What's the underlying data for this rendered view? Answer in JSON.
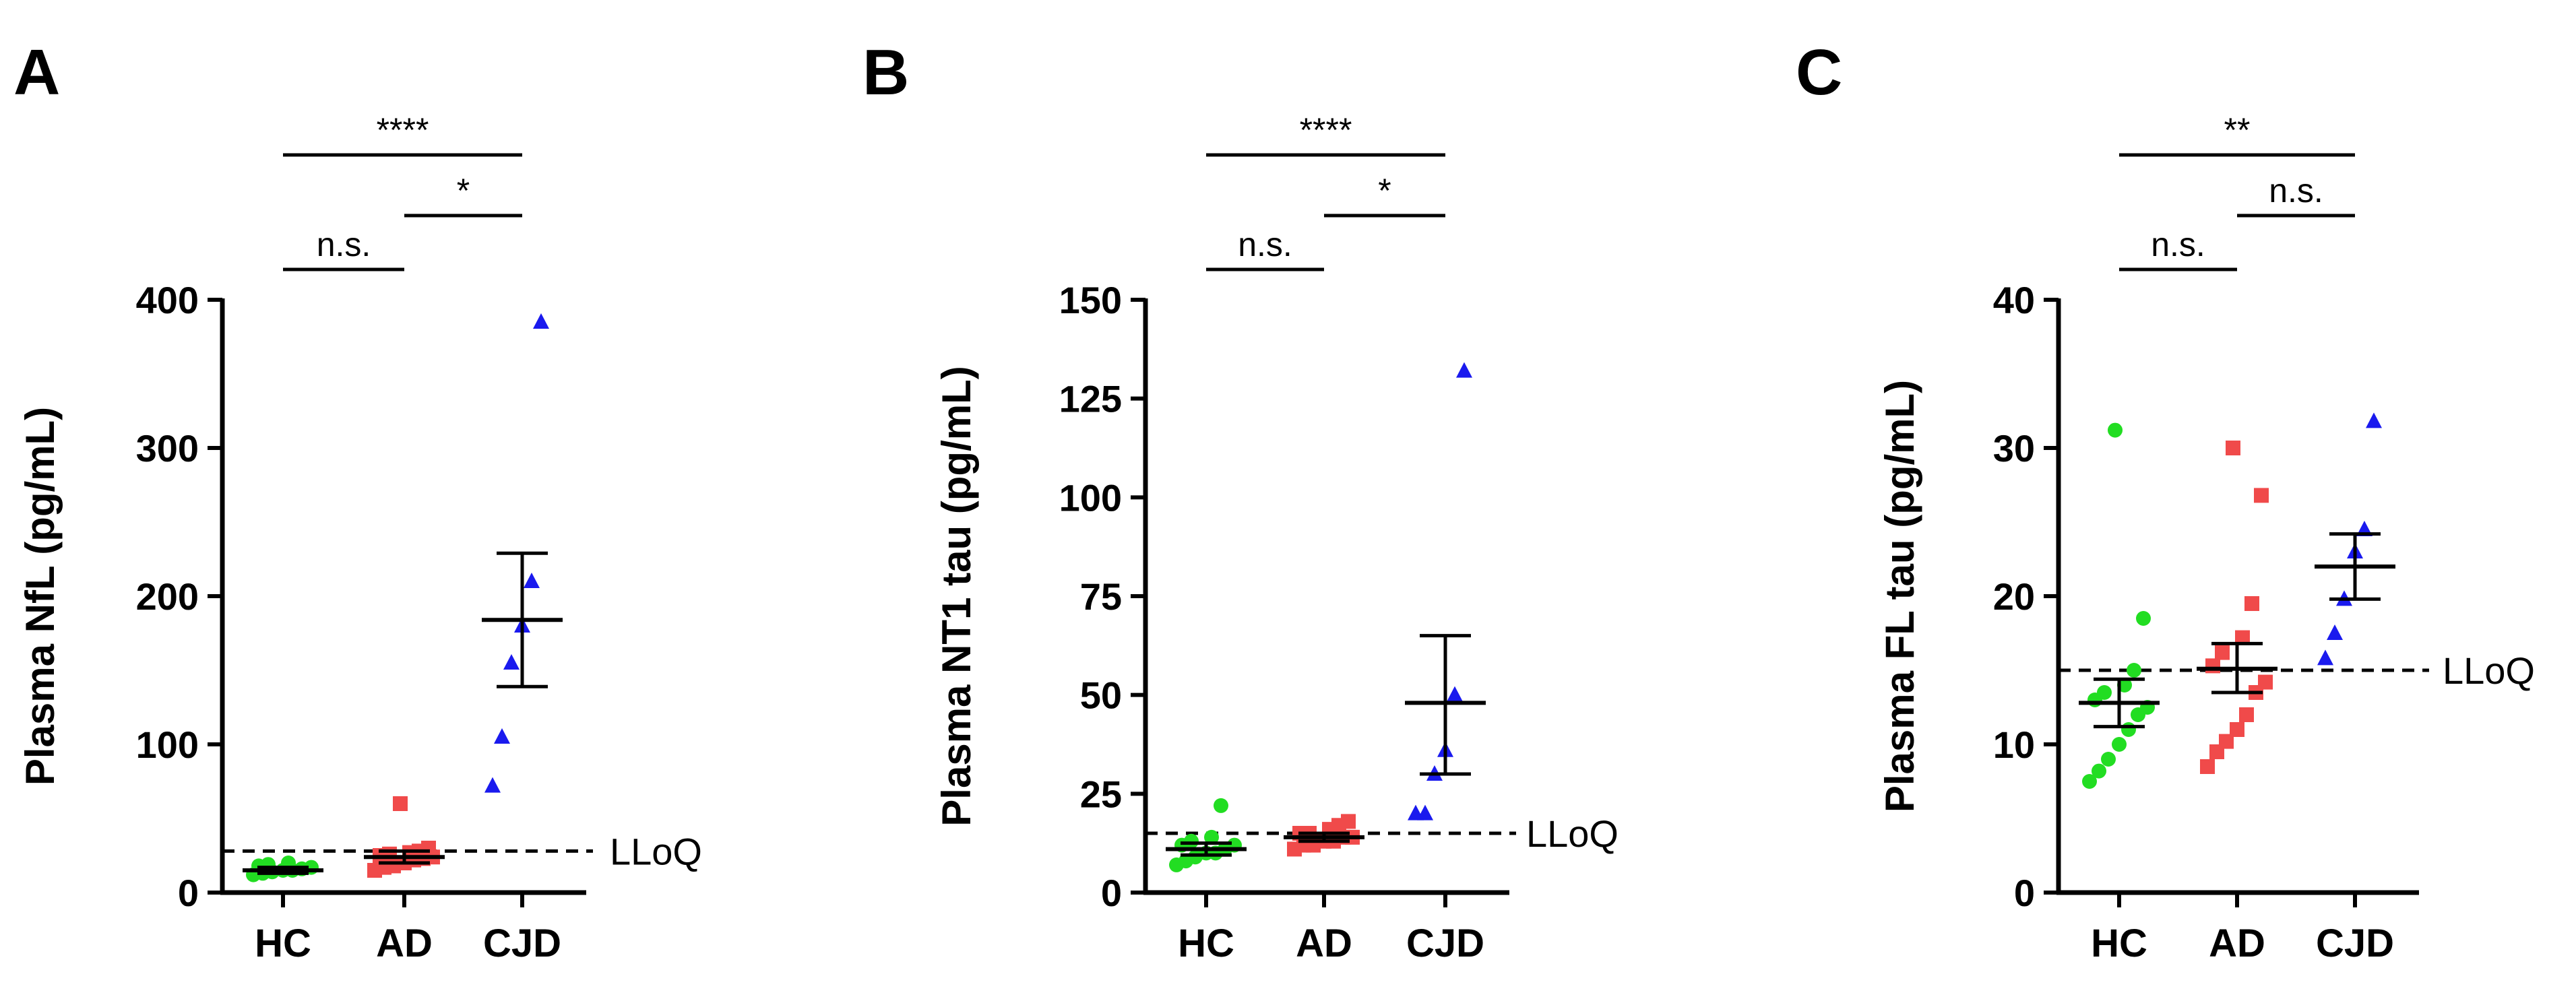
{
  "figure_colors": {
    "HC": "#22dd22",
    "AD": "#f04a4a",
    "CJD": "#1a1aee",
    "axis": "#000000"
  },
  "chart_data": [
    {
      "type": "scatter",
      "panel": "A",
      "title": "",
      "xlabel": "",
      "ylabel": "Plasma NfL (pg/mL)",
      "categories": [
        "HC",
        "AD",
        "CJD"
      ],
      "ylim": [
        0,
        400
      ],
      "yticks": [
        0,
        100,
        200,
        300,
        400
      ],
      "lloq": {
        "label": "LLoQ",
        "value": 28
      },
      "series": [
        {
          "category": "HC",
          "marker": "circle",
          "color": "#22dd22",
          "values": [
            12,
            13,
            14,
            15,
            15,
            16,
            17,
            18,
            19,
            20
          ],
          "mean": 15,
          "sem_low": 13,
          "sem_high": 17
        },
        {
          "category": "AD",
          "marker": "square",
          "color": "#f04a4a",
          "values": [
            15,
            17,
            18,
            20,
            22,
            23,
            24,
            25,
            26,
            27,
            28,
            30,
            60
          ],
          "mean": 24,
          "sem_low": 20,
          "sem_high": 28
        },
        {
          "category": "CJD",
          "marker": "triangle",
          "color": "#1a1aee",
          "values": [
            72,
            105,
            155,
            180,
            210,
            385
          ],
          "mean": 184,
          "sem_low": 139,
          "sem_high": 229
        }
      ],
      "significance": [
        {
          "from": "HC",
          "to": "AD",
          "label": "n.s.",
          "level": 0
        },
        {
          "from": "AD",
          "to": "CJD",
          "label": "*",
          "level": 1
        },
        {
          "from": "HC",
          "to": "CJD",
          "label": "****",
          "level": 2
        }
      ]
    },
    {
      "type": "scatter",
      "panel": "B",
      "title": "",
      "xlabel": "",
      "ylabel": "Plasma NT1 tau (pg/mL)",
      "categories": [
        "HC",
        "AD",
        "CJD"
      ],
      "ylim": [
        0,
        150
      ],
      "yticks": [
        0,
        25,
        50,
        75,
        100,
        125,
        150
      ],
      "lloq": {
        "label": "LLoQ",
        "value": 15
      },
      "series": [
        {
          "category": "HC",
          "marker": "circle",
          "color": "#22dd22",
          "values": [
            7,
            8,
            9,
            10,
            10,
            11,
            12,
            12,
            13,
            14,
            22
          ],
          "mean": 11,
          "sem_low": 9.5,
          "sem_high": 12.5
        },
        {
          "category": "AD",
          "marker": "square",
          "color": "#f04a4a",
          "values": [
            11,
            12,
            12,
            13,
            13,
            14,
            14,
            15,
            15,
            16,
            17,
            18
          ],
          "mean": 14,
          "sem_low": 13,
          "sem_high": 15
        },
        {
          "category": "CJD",
          "marker": "triangle",
          "color": "#1a1aee",
          "values": [
            20,
            20,
            30,
            36,
            50,
            132
          ],
          "mean": 48,
          "sem_low": 30,
          "sem_high": 65
        }
      ],
      "significance": [
        {
          "from": "HC",
          "to": "AD",
          "label": "n.s.",
          "level": 0
        },
        {
          "from": "AD",
          "to": "CJD",
          "label": "*",
          "level": 1
        },
        {
          "from": "HC",
          "to": "CJD",
          "label": "****",
          "level": 2
        }
      ]
    },
    {
      "type": "scatter",
      "panel": "C",
      "title": "",
      "xlabel": "",
      "ylabel": "Plasma FL tau (pg/mL)",
      "categories": [
        "HC",
        "AD",
        "CJD"
      ],
      "ylim": [
        0,
        40
      ],
      "yticks": [
        0,
        10,
        20,
        30,
        40
      ],
      "lloq": {
        "label": "LLoQ",
        "value": 15
      },
      "series": [
        {
          "category": "HC",
          "marker": "circle",
          "color": "#22dd22",
          "values": [
            7.5,
            8.2,
            9,
            10,
            11,
            12,
            12.5,
            13,
            13.5,
            14,
            15,
            18.5,
            31.2
          ],
          "mean": 12.8,
          "sem_low": 11.2,
          "sem_high": 14.4
        },
        {
          "category": "AD",
          "marker": "square",
          "color": "#f04a4a",
          "values": [
            8.5,
            9.5,
            10.2,
            11,
            12,
            13.5,
            14.2,
            15.3,
            16.2,
            17.2,
            19.5,
            26.8,
            30
          ],
          "mean": 15.1,
          "sem_low": 13.5,
          "sem_high": 16.8
        },
        {
          "category": "CJD",
          "marker": "triangle",
          "color": "#1a1aee",
          "values": [
            15.8,
            17.5,
            19.8,
            23,
            24.5,
            31.8
          ],
          "mean": 22,
          "sem_low": 19.8,
          "sem_high": 24.2
        }
      ],
      "significance": [
        {
          "from": "HC",
          "to": "AD",
          "label": "n.s.",
          "level": 0
        },
        {
          "from": "AD",
          "to": "CJD",
          "label": "n.s.",
          "level": 1
        },
        {
          "from": "HC",
          "to": "CJD",
          "label": "**",
          "level": 2
        }
      ]
    }
  ]
}
